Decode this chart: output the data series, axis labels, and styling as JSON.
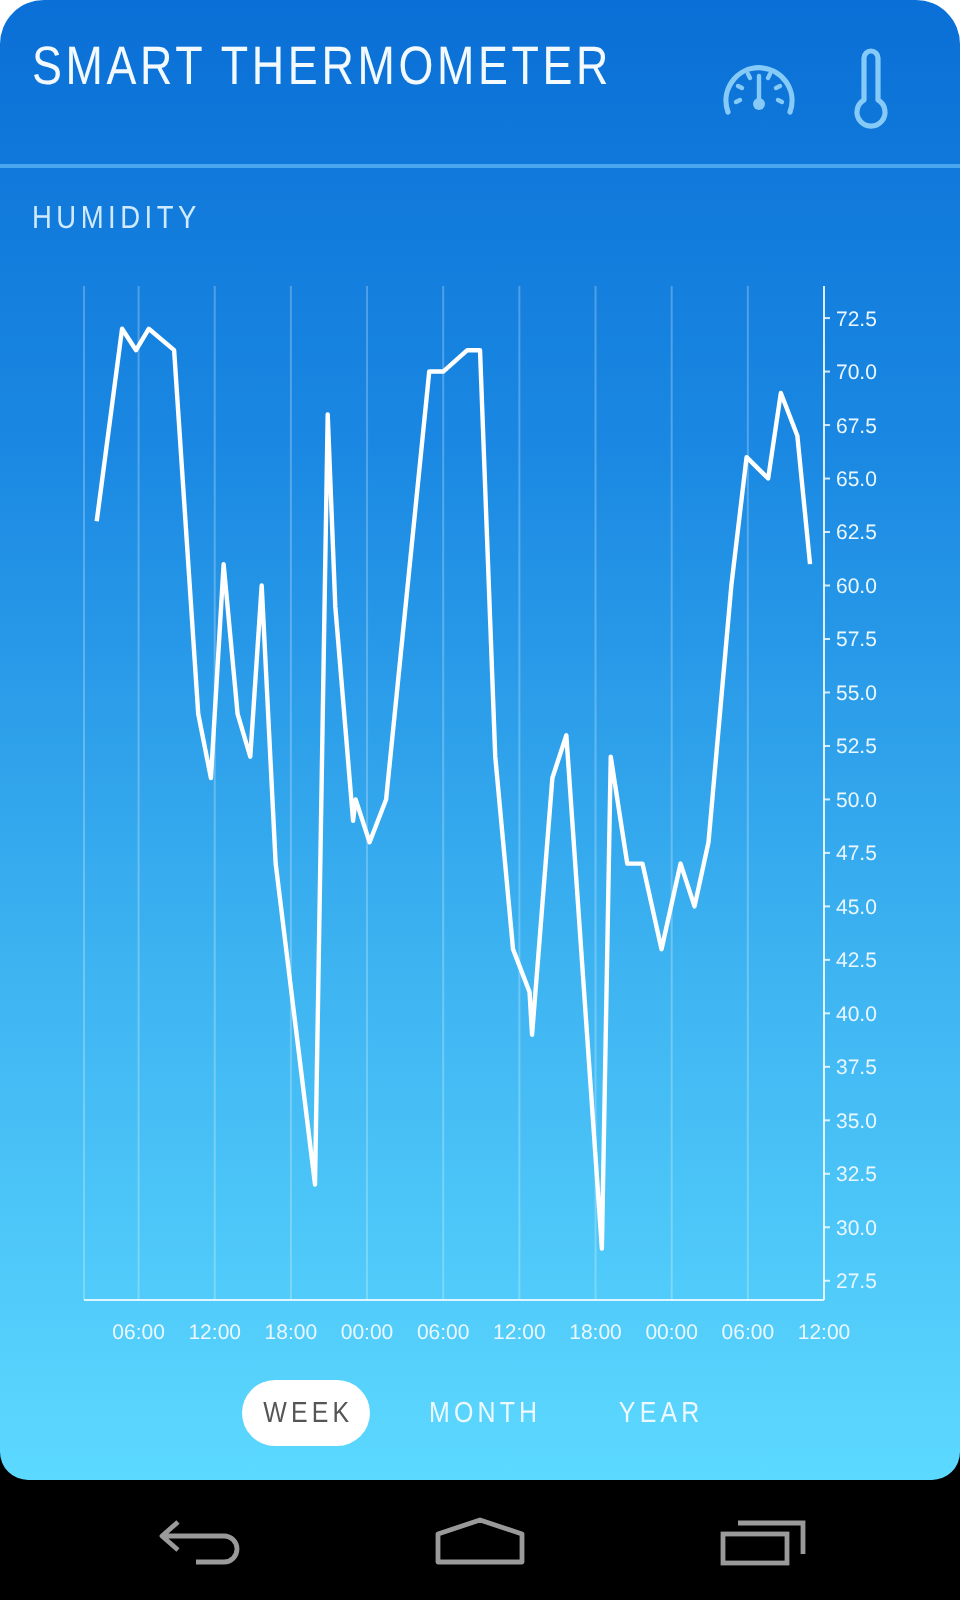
{
  "chart_data": {
    "type": "line",
    "title": "SMART THERMOMETER",
    "subtitle": "HUMIDITY",
    "x": [
      "2000-01-01T02:42",
      "2000-01-01T04:42",
      "2000-01-01T05:48",
      "2000-01-01T06:48",
      "2000-01-01T08:48",
      "2000-01-01T10:42",
      "2000-01-01T11:42",
      "2000-01-01T12:42",
      "2000-01-01T13:48",
      "2000-01-01T14:48",
      "2000-01-01T15:42",
      "2000-01-01T16:48",
      "2000-01-01T19:54",
      "2000-01-01T20:54",
      "2000-01-01T21:30",
      "2000-01-01T22:54",
      "2000-01-01T23:06",
      "2000-01-02T00:12",
      "2000-01-02T01:30",
      "2000-01-02T04:54",
      "2000-01-02T06:00",
      "2000-01-02T07:54",
      "2000-01-02T08:54",
      "2000-01-02T10:06",
      "2000-01-02T11:30",
      "2000-01-02T12:48",
      "2000-01-02T13:00",
      "2000-01-02T14:36",
      "2000-01-02T15:42",
      "2000-01-02T18:30",
      "2000-01-02T19:12",
      "2000-01-02T20:30",
      "2000-01-02T21:42",
      "2000-01-02T23:12",
      "2000-01-03T00:42",
      "2000-01-03T01:48",
      "2000-01-03T02:54",
      "2000-01-03T04:42",
      "2000-01-03T05:54",
      "2000-01-03T07:36",
      "2000-01-03T08:36",
      "2000-01-03T09:54",
      "2000-01-03T10:54"
    ],
    "values": [
      63,
      72,
      71,
      72,
      71,
      54,
      51,
      61,
      54,
      52,
      60,
      47,
      32,
      68,
      59,
      49,
      50,
      48,
      50,
      70,
      70,
      71,
      71,
      52,
      43,
      41,
      39,
      51,
      53,
      29,
      52,
      47,
      47,
      43,
      47,
      45,
      48,
      60,
      66,
      65,
      69,
      67,
      61
    ],
    "color": "#ffffff",
    "xlim": [
      "2000-01-01T01:42",
      "2000-01-03T12:00"
    ],
    "xticks": [
      {
        "value": "2000-01-01T06:00",
        "label": "06:00"
      },
      {
        "value": "2000-01-01T12:00",
        "label": "12:00"
      },
      {
        "value": "2000-01-01T18:00",
        "label": "18:00"
      },
      {
        "value": "2000-01-02T00:00",
        "label": "00:00"
      },
      {
        "value": "2000-01-02T06:00",
        "label": "06:00"
      },
      {
        "value": "2000-01-02T12:00",
        "label": "12:00"
      },
      {
        "value": "2000-01-02T18:00",
        "label": "18:00"
      },
      {
        "value": "2000-01-03T00:00",
        "label": "00:00"
      },
      {
        "value": "2000-01-03T06:00",
        "label": "06:00"
      },
      {
        "value": "2000-01-03T12:00",
        "label": "12:00"
      }
    ],
    "ylim": [
      26.6,
      74.0
    ],
    "yticks": [
      27.5,
      {
        "value": 30,
        "label": "30.0"
      },
      32.5,
      {
        "value": 35,
        "label": "35.0"
      },
      37.5,
      {
        "value": 40,
        "label": "40.0"
      },
      42.5,
      {
        "value": 45,
        "label": "45.0"
      },
      47.5,
      {
        "value": 50,
        "label": "50.0"
      },
      52.5,
      {
        "value": 55,
        "label": "55.0"
      },
      57.5,
      {
        "value": 60,
        "label": "60.0"
      },
      62.5,
      {
        "value": 65,
        "label": "65.0"
      },
      67.5,
      {
        "value": 70,
        "label": "70.0"
      },
      72.5
    ],
    "grid": "x",
    "annotations": [
      "WEEK",
      "MONTH",
      "YEAR"
    ]
  }
}
